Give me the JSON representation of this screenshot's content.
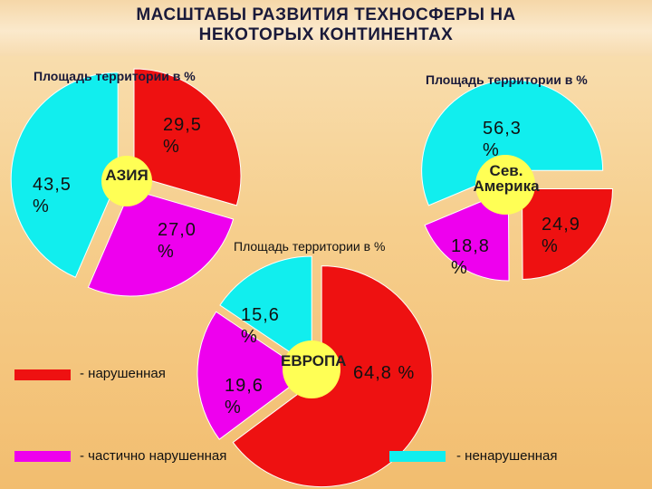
{
  "title": "МАСШТАБЫ РАЗВИТИЯ ТЕХНОСФЕРЫ НА НЕКОТОРЫХ КОНТИНЕНТАХ",
  "colors": {
    "disturbed": "#ee1111",
    "partial": "#ee00ee",
    "undisturbed": "#11eeee",
    "center": "#ffff55"
  },
  "legend": [
    {
      "key": "disturbed",
      "label": "- нарушенная"
    },
    {
      "key": "partial",
      "label": "- частично нарушенная"
    },
    {
      "key": "undisturbed",
      "label": "- ненарушенная"
    }
  ],
  "chart_data": [
    {
      "type": "pie",
      "title": "Площадь территории в %",
      "center_label": "АЗИЯ",
      "slices": [
        {
          "key": "disturbed",
          "value": 29.5,
          "label": "29,5 %"
        },
        {
          "key": "partial",
          "value": 27.0,
          "label": "27,0 %"
        },
        {
          "key": "undisturbed",
          "value": 43.5,
          "label": "43,5 %"
        }
      ]
    },
    {
      "type": "pie",
      "title": "Площадь территории в %",
      "center_label": "Сев. Америка",
      "slices": [
        {
          "key": "disturbed",
          "value": 24.9,
          "label": "24,9 %"
        },
        {
          "key": "partial",
          "value": 18.8,
          "label": "18,8 %"
        },
        {
          "key": "undisturbed",
          "value": 56.3,
          "label": "56,3 %"
        }
      ]
    },
    {
      "type": "pie",
      "title": "Площадь территории в %",
      "center_label": "ЕВРОПА",
      "slices": [
        {
          "key": "disturbed",
          "value": 64.8,
          "label": "64,8 %"
        },
        {
          "key": "partial",
          "value": 19.6,
          "label": "19,6 %"
        },
        {
          "key": "undisturbed",
          "value": 15.6,
          "label": "15,6 %"
        }
      ]
    }
  ]
}
